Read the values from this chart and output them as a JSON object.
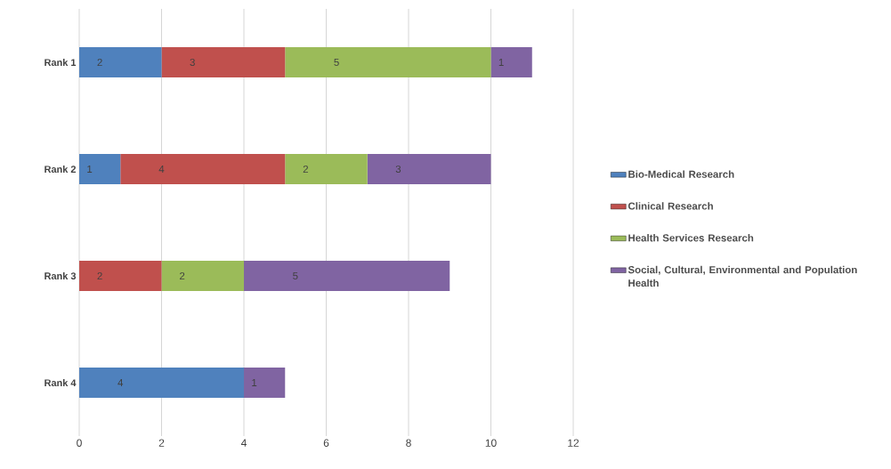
{
  "chart_data": {
    "type": "bar",
    "orientation": "horizontal",
    "stacked": true,
    "categories": [
      "Rank 1",
      "Rank 2",
      "Rank 3",
      "Rank 4"
    ],
    "series": [
      {
        "name": "Bio-Medical Research",
        "color": "#4f81bd",
        "values": [
          2,
          1,
          null,
          4
        ]
      },
      {
        "name": "Clinical Research",
        "color": "#c0504d",
        "values": [
          3,
          4,
          2,
          null
        ]
      },
      {
        "name": "Health Services Research",
        "color": "#9bbb59",
        "values": [
          5,
          2,
          2,
          null
        ]
      },
      {
        "name": "Social, Cultural, Environmental and Population Health",
        "color": "#8064a2",
        "values": [
          1,
          3,
          5,
          1
        ]
      }
    ],
    "xlim": [
      0,
      12
    ],
    "xticks": [
      0,
      2,
      4,
      6,
      8,
      10,
      12
    ],
    "grid": "x",
    "legend": "right",
    "data_labels": true
  }
}
